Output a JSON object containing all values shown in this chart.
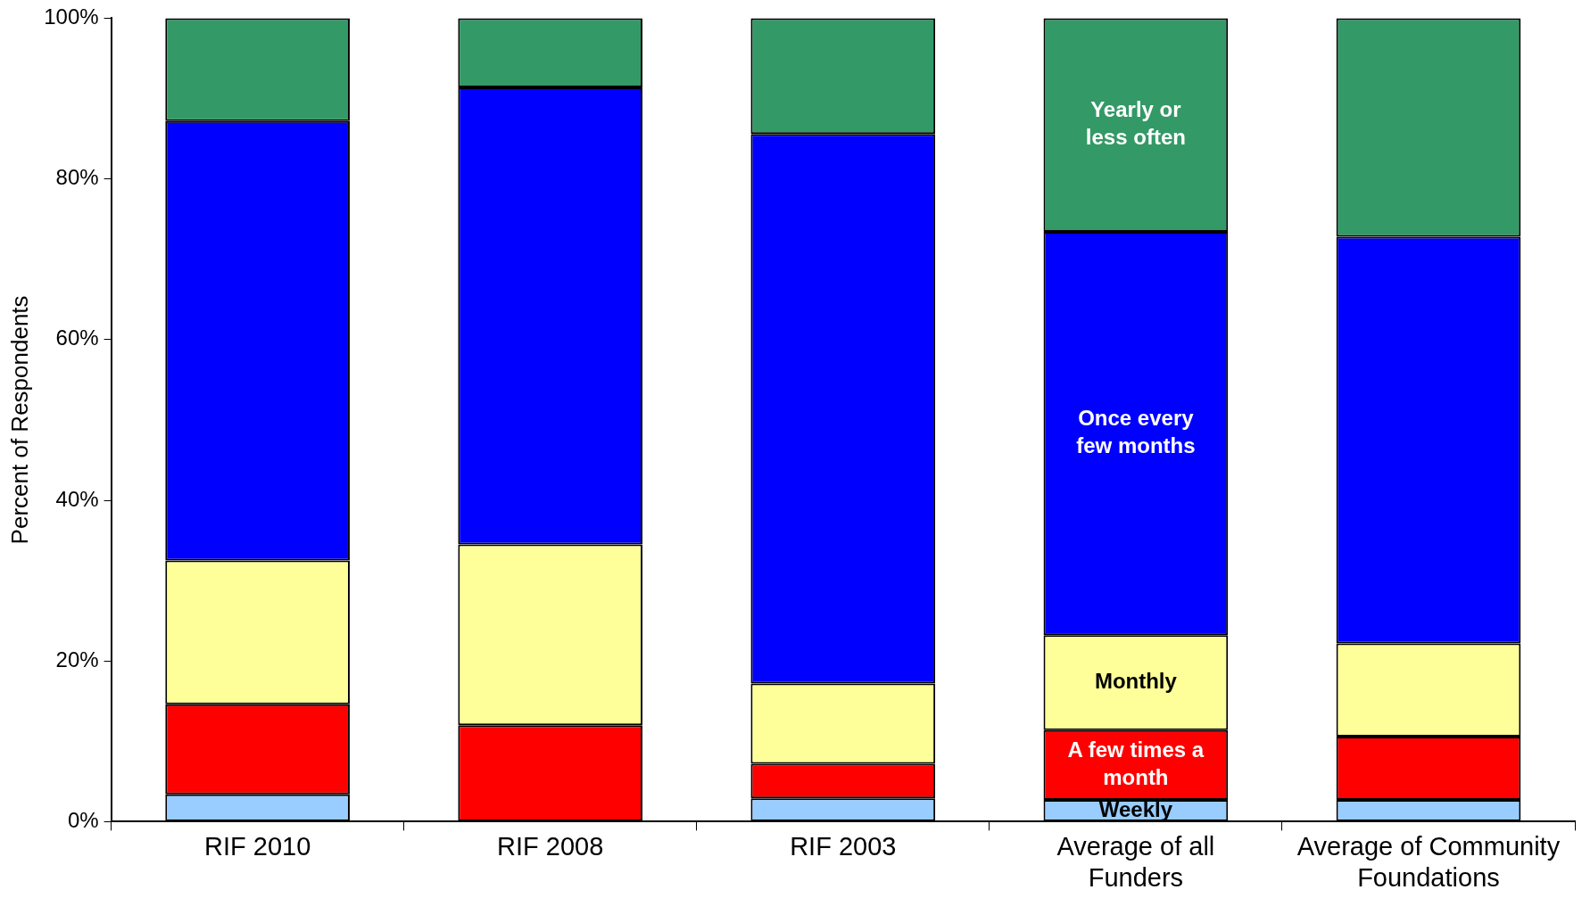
{
  "chart_data": {
    "type": "bar",
    "stacked": true,
    "ylabel": "Percent of Respondents",
    "categories": [
      "RIF 2010",
      "RIF 2008",
      "RIF 2003",
      "Average of all Funders",
      "Average of Community Foundations"
    ],
    "series": [
      {
        "name": "Weekly",
        "color": "#99ccff",
        "values": [
          3.4,
          0,
          2.9,
          2.7,
          2.7
        ]
      },
      {
        "name": "A few times a month",
        "color": "#ff0000",
        "values": [
          11.2,
          12.0,
          4.3,
          8.7,
          7.9
        ]
      },
      {
        "name": "Monthly",
        "color": "#ffff99",
        "values": [
          17.9,
          22.5,
          10.0,
          11.8,
          11.6
        ]
      },
      {
        "name": "Once every few months",
        "color": "#0000ff",
        "values": [
          54.7,
          56.9,
          68.4,
          50.2,
          50.6
        ]
      },
      {
        "name": "Yearly or less often",
        "color": "#339966",
        "values": [
          12.8,
          8.6,
          14.4,
          26.6,
          27.2
        ]
      }
    ],
    "ylim": [
      0,
      100
    ],
    "yticks": [
      {
        "value": 0,
        "label": "0%"
      },
      {
        "value": 20,
        "label": "20%"
      },
      {
        "value": 40,
        "label": "40%"
      },
      {
        "value": 60,
        "label": "60%"
      },
      {
        "value": 80,
        "label": "80%"
      },
      {
        "value": 100,
        "label": "100%"
      }
    ],
    "grid": false,
    "legend": false
  }
}
